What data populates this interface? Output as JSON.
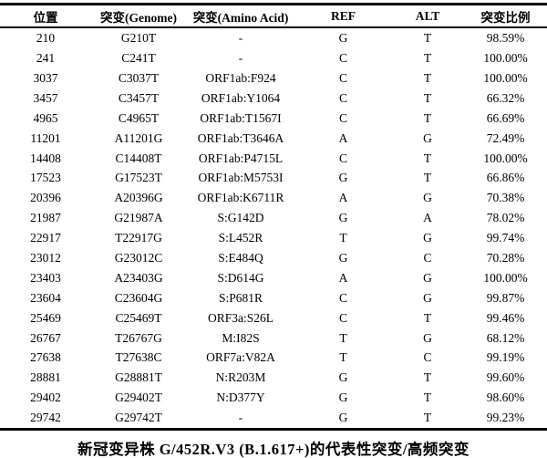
{
  "chart_data": {
    "type": "table",
    "title": "新冠变异株 G/452R.V3 (B.1.617+)的代表性突变/高频突变",
    "columns": [
      "位置",
      "突变(Genome)",
      "突变(Amino Acid)",
      "REF",
      "ALT",
      "突变比例"
    ],
    "rows": [
      [
        "210",
        "G210T",
        "-",
        "G",
        "T",
        "98.59%"
      ],
      [
        "241",
        "C241T",
        "-",
        "C",
        "T",
        "100.00%"
      ],
      [
        "3037",
        "C3037T",
        "ORF1ab:F924",
        "C",
        "T",
        "100.00%"
      ],
      [
        "3457",
        "C3457T",
        "ORF1ab:Y1064",
        "C",
        "T",
        "66.32%"
      ],
      [
        "4965",
        "C4965T",
        "ORF1ab:T1567I",
        "C",
        "T",
        "66.69%"
      ],
      [
        "11201",
        "A11201G",
        "ORF1ab:T3646A",
        "A",
        "G",
        "72.49%"
      ],
      [
        "14408",
        "C14408T",
        "ORF1ab:P4715L",
        "C",
        "T",
        "100.00%"
      ],
      [
        "17523",
        "G17523T",
        "ORF1ab:M5753I",
        "G",
        "T",
        "66.86%"
      ],
      [
        "20396",
        "A20396G",
        "ORF1ab:K6711R",
        "A",
        "G",
        "70.38%"
      ],
      [
        "21987",
        "G21987A",
        "S:G142D",
        "G",
        "A",
        "78.02%"
      ],
      [
        "22917",
        "T22917G",
        "S:L452R",
        "T",
        "G",
        "99.74%"
      ],
      [
        "23012",
        "G23012C",
        "S:E484Q",
        "G",
        "C",
        "70.28%"
      ],
      [
        "23403",
        "A23403G",
        "S:D614G",
        "A",
        "G",
        "100.00%"
      ],
      [
        "23604",
        "C23604G",
        "S:P681R",
        "C",
        "G",
        "99.87%"
      ],
      [
        "25469",
        "C25469T",
        "ORF3a:S26L",
        "C",
        "T",
        "99.46%"
      ],
      [
        "26767",
        "T26767G",
        "M:I82S",
        "T",
        "G",
        "68.12%"
      ],
      [
        "27638",
        "T27638C",
        "ORF7a:V82A",
        "T",
        "C",
        "99.19%"
      ],
      [
        "28881",
        "G28881T",
        "N:R203M",
        "G",
        "T",
        "99.60%"
      ],
      [
        "29402",
        "G29402T",
        "N:D377Y",
        "G",
        "T",
        "98.60%"
      ],
      [
        "29742",
        "G29742T",
        "-",
        "G",
        "T",
        "99.23%"
      ]
    ],
    "layout_hints": {
      "grid": "three-line table (top rule, header rule, bottom rule), no vertical rules",
      "alignment": "all columns centered",
      "caption_position": "below table, centered, bold"
    }
  },
  "colors": {
    "text": "#000000",
    "background": "#ffffff",
    "rule": "#000000"
  }
}
